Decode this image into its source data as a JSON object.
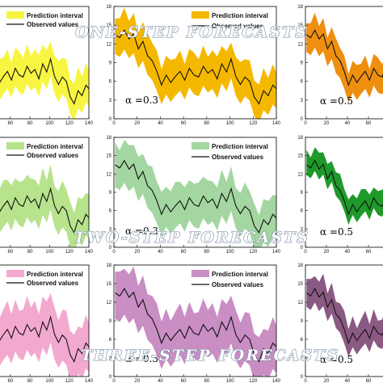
{
  "banners": [
    "ONE-STEP FORECASTS",
    "TWO-STEP FORECASTS",
    "THREE-STEP FORECASTS"
  ],
  "legend": {
    "band": "Prediction interval",
    "line": "Observed values"
  },
  "chart_data": {
    "type": "line",
    "layout": "3x3 grid",
    "x_ticks": [
      0,
      20,
      40,
      60,
      80,
      100,
      120,
      140
    ],
    "y_ticks": [
      0,
      3,
      6,
      9,
      12,
      15,
      18
    ],
    "xlim": [
      0,
      140
    ],
    "ylim": [
      0,
      18
    ],
    "alpha_labels": [
      "α =0.3",
      "α =0.5"
    ],
    "rows": [
      {
        "name": "ONE-STEP FORECASTS",
        "columns": [
          {
            "band_color": "#f7f542",
            "band_width": 2.8,
            "alpha": ""
          },
          {
            "band_color": "#f5b800",
            "band_width": 2.6,
            "alpha": "α =0.3"
          },
          {
            "band_color": "#ef8f10",
            "band_width": 1.8,
            "alpha": "α =0.5"
          }
        ]
      },
      {
        "name": "TWO-STEP FORECASTS",
        "columns": [
          {
            "band_color": "#b7e38c",
            "band_width": 3.2,
            "alpha": ""
          },
          {
            "band_color": "#a3d6a0",
            "band_width": 2.9,
            "alpha": "α =0.3"
          },
          {
            "band_color": "#1f9a2a",
            "band_width": 1.7,
            "alpha": "α =0.5"
          }
        ]
      },
      {
        "name": "THREE-STEP FORECASTS",
        "columns": [
          {
            "band_color": "#f3a9cf",
            "band_width": 3.6,
            "alpha": ""
          },
          {
            "band_color": "#c98ec4",
            "band_width": 3.2,
            "alpha": "α =0.3"
          },
          {
            "band_color": "#8b5a84",
            "band_width": 2.0,
            "alpha": "α =0.5"
          }
        ]
      }
    ],
    "series_observed": {
      "x": [
        1,
        5,
        9,
        13,
        17,
        21,
        25,
        29,
        33,
        37,
        41,
        45,
        49,
        53,
        57,
        61,
        65,
        69,
        73,
        77,
        81,
        85,
        89,
        93,
        97,
        101,
        105,
        109,
        113,
        117,
        121,
        125,
        129,
        133,
        137,
        140
      ],
      "y": [
        13.5,
        13.0,
        14.2,
        12.8,
        13.6,
        11.2,
        12.4,
        10.1,
        9.3,
        7.6,
        5.4,
        7.0,
        5.8,
        6.8,
        7.6,
        6.2,
        8.1,
        7.0,
        6.7,
        8.4,
        7.3,
        7.9,
        6.4,
        8.8,
        7.5,
        9.6,
        6.8,
        5.5,
        6.7,
        6.0,
        3.5,
        2.4,
        4.5,
        3.7,
        5.4,
        4.8
      ]
    }
  }
}
